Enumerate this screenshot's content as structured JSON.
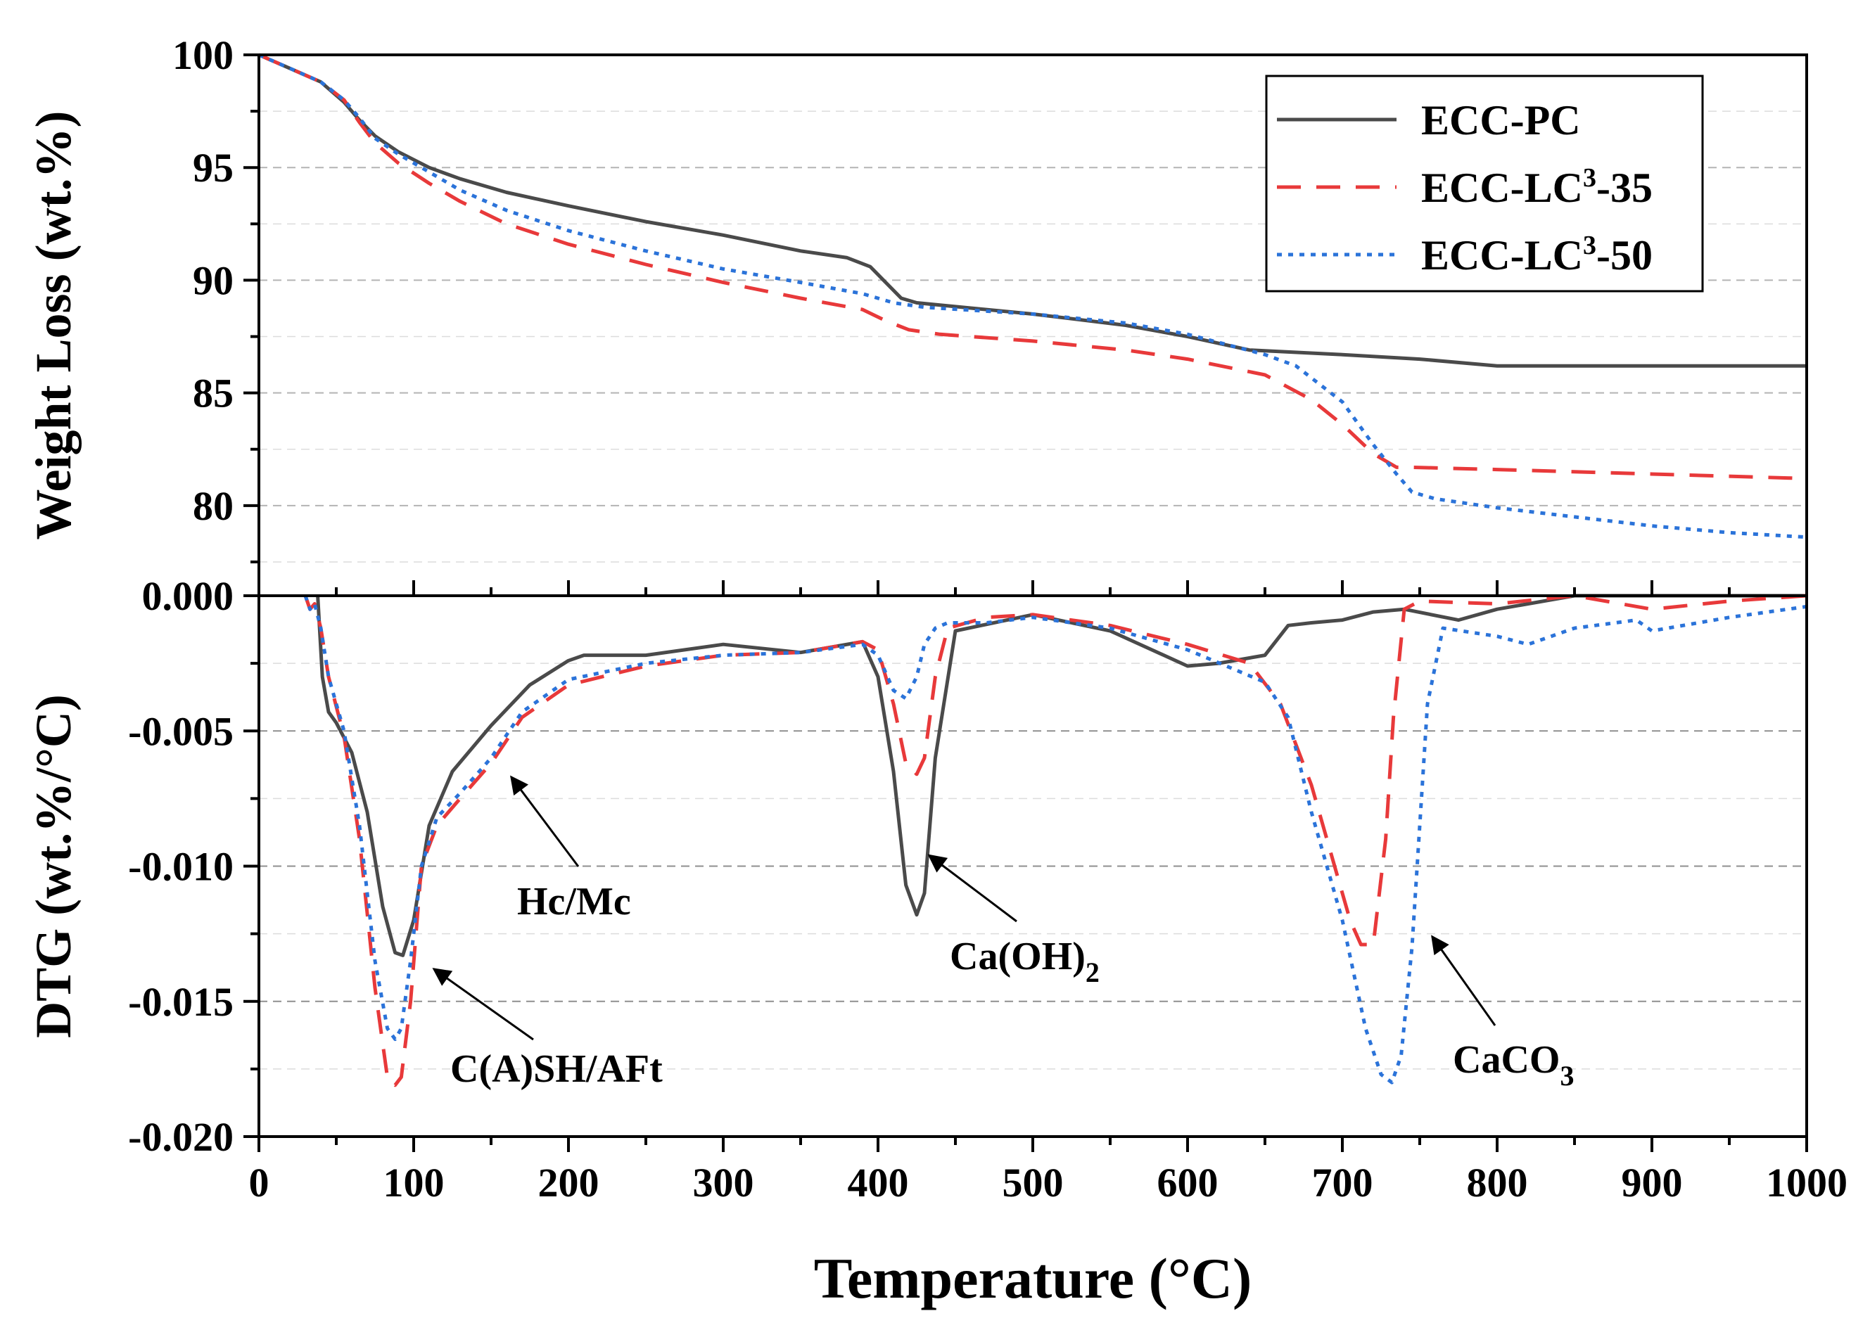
{
  "chart_data": [
    {
      "type": "line",
      "panel": "top",
      "ylabel": "Weight Loss (wt.%)",
      "xlim": [
        0,
        1000
      ],
      "ylim": [
        76,
        100
      ],
      "yticks": [
        80,
        85,
        90,
        95,
        100
      ],
      "ytick_labels": [
        "80",
        "85",
        "90",
        "95",
        "100"
      ],
      "grid": "horizontal dashed",
      "legend": {
        "placement": "top-right",
        "entries": [
          {
            "base": "ECC-PC",
            "sup": "",
            "tail": ""
          },
          {
            "base": "ECC-LC",
            "sup": "3",
            "tail": "-35"
          },
          {
            "base": "ECC-LC",
            "sup": "3",
            "tail": "-50"
          }
        ]
      },
      "series": [
        {
          "name": "ECC-PC",
          "color": "#4a4a4a",
          "dash": "solid",
          "x": [
            0,
            20,
            40,
            55,
            65,
            75,
            90,
            110,
            130,
            160,
            200,
            250,
            300,
            350,
            380,
            395,
            405,
            415,
            425,
            440,
            500,
            560,
            600,
            640,
            700,
            750,
            800,
            850,
            900,
            950,
            1000
          ],
          "y": [
            100,
            99.4,
            98.8,
            97.9,
            97.1,
            96.4,
            95.7,
            95.0,
            94.5,
            93.9,
            93.3,
            92.6,
            92.0,
            91.3,
            91.0,
            90.6,
            89.9,
            89.2,
            89.0,
            88.9,
            88.5,
            88.0,
            87.5,
            86.9,
            86.7,
            86.5,
            86.2,
            86.2,
            86.2,
            86.2,
            86.2
          ]
        },
        {
          "name": "ECC-LC3-35",
          "color": "#e8393a",
          "dash": "dashed",
          "x": [
            0,
            20,
            40,
            55,
            65,
            75,
            90,
            110,
            130,
            160,
            200,
            250,
            300,
            350,
            390,
            405,
            420,
            440,
            500,
            560,
            600,
            650,
            680,
            700,
            720,
            735,
            745,
            800,
            900,
            1000
          ],
          "y": [
            100,
            99.4,
            98.8,
            98.0,
            97.0,
            96.1,
            95.2,
            94.3,
            93.5,
            92.5,
            91.6,
            90.7,
            89.9,
            89.2,
            88.7,
            88.2,
            87.8,
            87.6,
            87.3,
            86.9,
            86.5,
            85.8,
            84.7,
            83.6,
            82.3,
            81.7,
            81.7,
            81.6,
            81.4,
            81.2
          ]
        },
        {
          "name": "ECC-LC3-50",
          "color": "#2b73d9",
          "dash": "dotted",
          "x": [
            0,
            20,
            40,
            55,
            65,
            75,
            90,
            110,
            130,
            160,
            200,
            250,
            300,
            350,
            390,
            410,
            430,
            500,
            560,
            600,
            650,
            670,
            700,
            720,
            735,
            745,
            760,
            800,
            850,
            900,
            950,
            1000
          ],
          "y": [
            100,
            99.4,
            98.8,
            98.0,
            97.2,
            96.3,
            95.6,
            94.8,
            94.0,
            93.1,
            92.2,
            91.3,
            90.5,
            89.9,
            89.4,
            89.0,
            88.8,
            88.5,
            88.1,
            87.6,
            86.7,
            86.2,
            84.6,
            82.7,
            81.4,
            80.6,
            80.3,
            79.9,
            79.5,
            79.1,
            78.8,
            78.6
          ]
        }
      ]
    },
    {
      "type": "line",
      "panel": "bottom",
      "xlabel": "Temperature (°C)",
      "ylabel": "DTG (wt.%/°C)",
      "xlim": [
        0,
        1000
      ],
      "ylim": [
        -0.02,
        0.0
      ],
      "xticks": [
        0,
        100,
        200,
        300,
        400,
        500,
        600,
        700,
        800,
        900,
        1000
      ],
      "xtick_labels": [
        "0",
        "100",
        "200",
        "300",
        "400",
        "500",
        "600",
        "700",
        "800",
        "900",
        "1000"
      ],
      "yticks": [
        0.0,
        -0.005,
        -0.01,
        -0.015,
        -0.02
      ],
      "ytick_labels": [
        "0.000",
        "-0.005",
        "-0.010",
        "-0.015",
        "-0.020"
      ],
      "grid": "horizontal dashed",
      "annotations": [
        {
          "text": "C(A)SH/AFt",
          "sub": "",
          "arrow_to": [
            113,
            -0.0138
          ]
        },
        {
          "text": "Hc/Mc",
          "sub": "",
          "arrow_to": [
            163,
            -0.0067
          ]
        },
        {
          "text": "Ca(OH)",
          "sub": "2",
          "arrow_to": [
            433,
            -0.0096
          ]
        },
        {
          "text": "CaCO",
          "sub": "3",
          "arrow_to": [
            758,
            -0.0126
          ]
        }
      ],
      "series": [
        {
          "name": "ECC-PC",
          "color": "#4a4a4a",
          "dash": "solid",
          "x": [
            38,
            41,
            45,
            50,
            60,
            70,
            80,
            88,
            93,
            100,
            110,
            125,
            150,
            175,
            200,
            210,
            250,
            300,
            350,
            390,
            400,
            410,
            418,
            425,
            430,
            437,
            450,
            500,
            550,
            600,
            620,
            650,
            665,
            680,
            700,
            720,
            740,
            775,
            800,
            850,
            900,
            1000
          ],
          "y": [
            0,
            -0.003,
            -0.0043,
            -0.0047,
            -0.0058,
            -0.008,
            -0.0115,
            -0.0132,
            -0.0133,
            -0.012,
            -0.0085,
            -0.0065,
            -0.0048,
            -0.0033,
            -0.0024,
            -0.0022,
            -0.0022,
            -0.0018,
            -0.0021,
            -0.0017,
            -0.003,
            -0.0065,
            -0.0107,
            -0.0118,
            -0.011,
            -0.006,
            -0.0013,
            -0.0007,
            -0.0013,
            -0.0026,
            -0.0025,
            -0.0022,
            -0.0011,
            -0.001,
            -0.0009,
            -0.0006,
            -0.0005,
            -0.0009,
            -0.0005,
            0,
            0,
            0
          ]
        },
        {
          "name": "ECC-LC3-35",
          "color": "#e8393a",
          "dash": "dashed",
          "x": [
            30,
            33,
            36,
            40,
            45,
            55,
            65,
            75,
            83,
            88,
            92,
            98,
            105,
            115,
            130,
            150,
            170,
            200,
            250,
            300,
            350,
            390,
            400,
            410,
            418,
            425,
            430,
            437,
            445,
            470,
            500,
            550,
            600,
            640,
            660,
            680,
            695,
            705,
            712,
            720,
            728,
            733,
            740,
            750,
            800,
            850,
            900,
            950,
            1000
          ],
          "y": [
            0,
            -0.0005,
            -0.0003,
            -0.0012,
            -0.003,
            -0.0052,
            -0.009,
            -0.0145,
            -0.0178,
            -0.0181,
            -0.0178,
            -0.015,
            -0.01,
            -0.0085,
            -0.0075,
            -0.0062,
            -0.0045,
            -0.0033,
            -0.0026,
            -0.0022,
            -0.0021,
            -0.0017,
            -0.002,
            -0.004,
            -0.0062,
            -0.0066,
            -0.006,
            -0.003,
            -0.0012,
            -0.0008,
            -0.0007,
            -0.0011,
            -0.0018,
            -0.0025,
            -0.004,
            -0.007,
            -0.01,
            -0.012,
            -0.0129,
            -0.0129,
            -0.009,
            -0.0045,
            -0.0005,
            -0.0002,
            -0.0003,
            0,
            -0.0005,
            -0.0002,
            0
          ]
        },
        {
          "name": "ECC-LC3-50",
          "color": "#2b73d9",
          "dash": "dotted",
          "x": [
            30,
            33,
            36,
            40,
            45,
            55,
            65,
            75,
            83,
            88,
            92,
            98,
            105,
            115,
            130,
            150,
            170,
            200,
            250,
            300,
            350,
            390,
            400,
            410,
            418,
            425,
            430,
            437,
            445,
            470,
            500,
            550,
            600,
            650,
            665,
            680,
            700,
            715,
            725,
            732,
            738,
            745,
            755,
            765,
            800,
            820,
            850,
            890,
            900,
            950,
            1000
          ],
          "y": [
            0,
            -0.0005,
            -0.0003,
            -0.0012,
            -0.003,
            -0.005,
            -0.0085,
            -0.0135,
            -0.016,
            -0.0164,
            -0.016,
            -0.0135,
            -0.01,
            -0.0082,
            -0.0073,
            -0.006,
            -0.0043,
            -0.0031,
            -0.0025,
            -0.0022,
            -0.0021,
            -0.0018,
            -0.0022,
            -0.0035,
            -0.0038,
            -0.003,
            -0.0018,
            -0.0012,
            -0.001,
            -0.001,
            -0.0008,
            -0.0012,
            -0.002,
            -0.0032,
            -0.0045,
            -0.008,
            -0.012,
            -0.016,
            -0.0177,
            -0.018,
            -0.017,
            -0.013,
            -0.004,
            -0.0012,
            -0.0015,
            -0.0018,
            -0.0012,
            -0.0009,
            -0.0013,
            -0.0008,
            -0.0004
          ]
        }
      ]
    }
  ]
}
